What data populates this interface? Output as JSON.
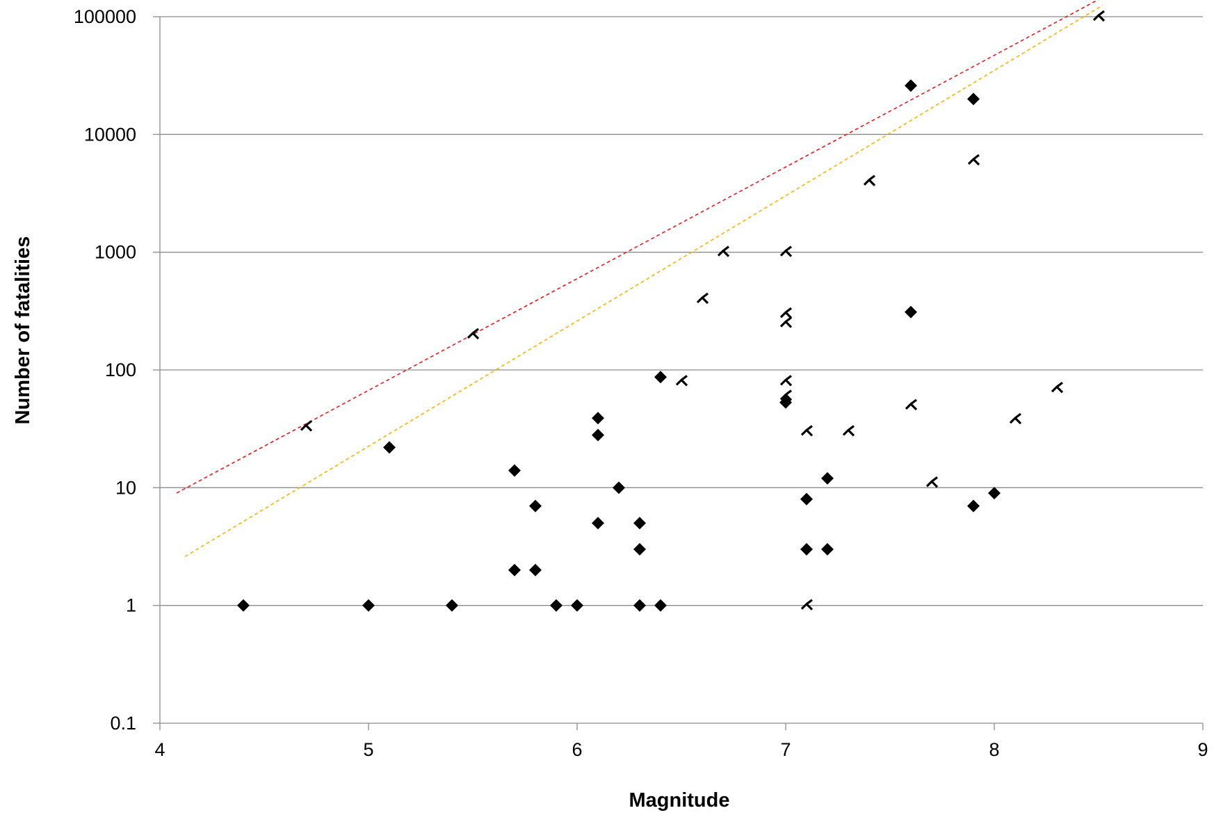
{
  "chart_data": {
    "type": "scatter",
    "title": "",
    "xlabel": "Magnitude",
    "ylabel": "Number of fatalities",
    "xlim": [
      4,
      9
    ],
    "ylim": [
      0.1,
      100000
    ],
    "yscale": "log",
    "grid": "horizontal major gridlines",
    "legend": "none",
    "x_ticks": [
      "4",
      "5",
      "6",
      "7",
      "8",
      "9"
    ],
    "y_ticks": [
      "0.1",
      "1",
      "10",
      "100",
      "1000",
      "10000",
      "100000"
    ],
    "series": [
      {
        "marker": "filled-diamond",
        "color": "#000000",
        "points": [
          [
            4.4,
            1
          ],
          [
            5.0,
            1
          ],
          [
            5.1,
            22
          ],
          [
            5.4,
            1
          ],
          [
            5.7,
            14
          ],
          [
            5.7,
            2
          ],
          [
            5.8,
            7
          ],
          [
            5.8,
            2
          ],
          [
            5.9,
            1
          ],
          [
            6.0,
            1
          ],
          [
            6.1,
            39
          ],
          [
            6.1,
            28
          ],
          [
            6.1,
            5
          ],
          [
            6.2,
            10
          ],
          [
            6.3,
            5
          ],
          [
            6.3,
            3
          ],
          [
            6.3,
            1
          ],
          [
            6.4,
            87
          ],
          [
            6.4,
            1
          ],
          [
            7.0,
            53
          ],
          [
            7.1,
            8
          ],
          [
            7.1,
            3
          ],
          [
            7.2,
            12
          ],
          [
            7.2,
            3
          ],
          [
            7.6,
            26000
          ],
          [
            7.6,
            310
          ],
          [
            7.9,
            20000
          ],
          [
            7.9,
            7
          ],
          [
            8.0,
            9
          ]
        ]
      },
      {
        "marker": "open-bracket",
        "color": "#000000",
        "points": [
          [
            4.7,
            33
          ],
          [
            5.5,
            200
          ],
          [
            6.5,
            80
          ],
          [
            6.6,
            400
          ],
          [
            6.7,
            1000
          ],
          [
            7.0,
            1000
          ],
          [
            7.0,
            300
          ],
          [
            7.0,
            250
          ],
          [
            7.0,
            80
          ],
          [
            7.0,
            60
          ],
          [
            7.1,
            30
          ],
          [
            7.1,
            1
          ],
          [
            7.3,
            30
          ],
          [
            7.4,
            4000
          ],
          [
            7.6,
            50
          ],
          [
            7.7,
            11
          ],
          [
            7.9,
            6000
          ],
          [
            8.1,
            38
          ],
          [
            8.3,
            70
          ],
          [
            8.5,
            100000
          ]
        ]
      }
    ],
    "lines": [
      {
        "style": "dashed",
        "color": "#e8191c",
        "points": [
          [
            4.08,
            9
          ],
          [
            8.5,
            140000
          ]
        ]
      },
      {
        "style": "dashed",
        "color": "#f5b400",
        "points": [
          [
            4.12,
            2.6
          ],
          [
            8.52,
            125000
          ]
        ]
      }
    ]
  }
}
